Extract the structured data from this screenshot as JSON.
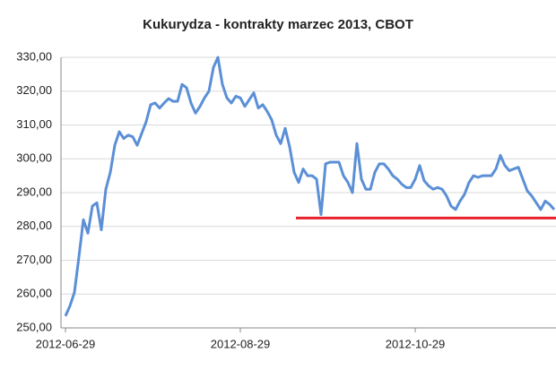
{
  "chart_data": {
    "type": "line",
    "title": "Kukurydza - kontrakty marzec 2013, CBOT",
    "categories": [
      "2012-06-29",
      null,
      null,
      null,
      null,
      null,
      null,
      null,
      null,
      null,
      null,
      null,
      null,
      null,
      null,
      null,
      null,
      null,
      null,
      null,
      null,
      null,
      null,
      null,
      null,
      null,
      null,
      null,
      null,
      null,
      null,
      null,
      null,
      null,
      null,
      null,
      null,
      null,
      null,
      "2012-08-29",
      null,
      null,
      null,
      null,
      null,
      null,
      null,
      null,
      null,
      null,
      null,
      null,
      null,
      null,
      null,
      null,
      null,
      null,
      null,
      null,
      null,
      null,
      null,
      null,
      null,
      null,
      null,
      null,
      null,
      null,
      null,
      null,
      null,
      null,
      null,
      null,
      null,
      null,
      "2012-10-29",
      null,
      null,
      null,
      null,
      null,
      null,
      null,
      null,
      null,
      null,
      null,
      null,
      null,
      null,
      null,
      null,
      null,
      null,
      null,
      null,
      null,
      null,
      null,
      null,
      null,
      null,
      null,
      null,
      null,
      null,
      null
    ],
    "series": [
      {
        "color": "#5b8fd6",
        "values": [
          253.5,
          256.5,
          260.5,
          271,
          282,
          278,
          286,
          287,
          279,
          291,
          296,
          304,
          308,
          306,
          307,
          306.5,
          304,
          307.5,
          311,
          316,
          316.5,
          315,
          316.5,
          317.8,
          317,
          317,
          322,
          321,
          316.5,
          313.5,
          315.5,
          318,
          320,
          327,
          330,
          322,
          318,
          316.5,
          318.5,
          318,
          315.5,
          317.5,
          319.5,
          315,
          316,
          314,
          311.5,
          307,
          304.5,
          309,
          303.5,
          296,
          293,
          297,
          295,
          295,
          294,
          283.5,
          298.5,
          299,
          299,
          299,
          295,
          293,
          290,
          304.5,
          294,
          291,
          291,
          296,
          298.5,
          298.5,
          297,
          295,
          294,
          292.5,
          291.5,
          291.5,
          294,
          298,
          293.5,
          292,
          291,
          291.5,
          291,
          289,
          286,
          285,
          287.5,
          289.5,
          293,
          295,
          294.5,
          295,
          295,
          295,
          297,
          301,
          298,
          296.5,
          297,
          297.5,
          294,
          290.5,
          289,
          287,
          285,
          287.5,
          286.5,
          285
        ]
      }
    ],
    "ylim": [
      250,
      330
    ],
    "yticks": [
      {
        "value": 250,
        "label": "250,00"
      },
      {
        "value": 260,
        "label": "260,00"
      },
      {
        "value": 270,
        "label": "270,00"
      },
      {
        "value": 280,
        "label": "280,00"
      },
      {
        "value": 290,
        "label": "290,00"
      },
      {
        "value": 300,
        "label": "300,00"
      },
      {
        "value": 310,
        "label": "310,00"
      },
      {
        "value": 320,
        "label": "320,00"
      },
      {
        "value": 330,
        "label": "330,00"
      }
    ],
    "grid": true,
    "reference_line": {
      "value": 282.5,
      "color": "#e8202a"
    }
  }
}
